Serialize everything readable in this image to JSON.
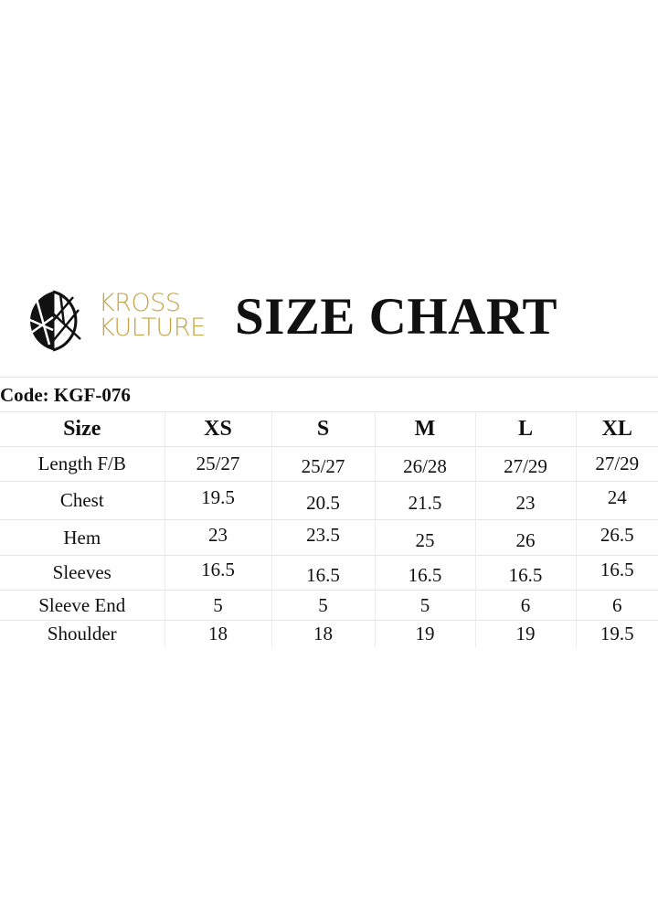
{
  "brand": {
    "line1": "KROSS",
    "line2": "KULTURE",
    "color": "#c6a548"
  },
  "title": "SIZE CHART",
  "code_label": "Code: KGF-076",
  "table": {
    "headers": [
      "Size",
      "XS",
      "S",
      "M",
      "L",
      "XL"
    ],
    "rows": [
      {
        "label": "Length F/B",
        "values": [
          "25/27",
          "25/27",
          "26/28",
          "27/29",
          "27/29"
        ]
      },
      {
        "label": "Chest",
        "values": [
          "19.5",
          "20.5",
          "21.5",
          "23",
          "24"
        ]
      },
      {
        "label": "Hem",
        "values": [
          "23",
          "23.5",
          "25",
          "26",
          "26.5"
        ]
      },
      {
        "label": "Sleeves",
        "values": [
          "16.5",
          "16.5",
          "16.5",
          "16.5",
          "16.5"
        ]
      },
      {
        "label": "Sleeve End",
        "values": [
          "5",
          "5",
          "5",
          "6",
          "6"
        ]
      },
      {
        "label": "Shoulder",
        "values": [
          "18",
          "18",
          "19",
          "19",
          "19.5"
        ]
      }
    ]
  }
}
